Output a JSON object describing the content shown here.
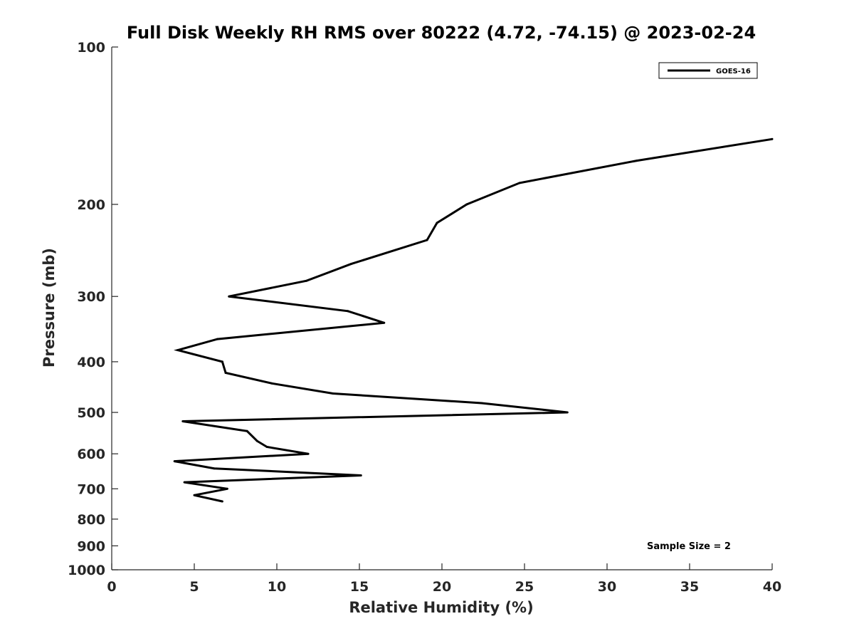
{
  "chart_data": {
    "type": "line",
    "title": "Full Disk Weekly RH RMS over 80222 (4.72, -74.15) @ 2023-02-24",
    "xlabel": "Relative Humidity (%)",
    "ylabel": "Pressure (mb)",
    "xlim": [
      0,
      40
    ],
    "ylim": [
      1000,
      100
    ],
    "yscale": "log",
    "grid": false,
    "legend_position": "top-right",
    "xticks": [
      0,
      5,
      10,
      15,
      20,
      25,
      30,
      35,
      40
    ],
    "yticks": [
      100,
      200,
      300,
      400,
      500,
      600,
      700,
      800,
      900,
      1000
    ],
    "annotation": "Sample Size = 2",
    "series": [
      {
        "name": "GOES-16",
        "color": "#000000",
        "points": [
          {
            "x": 40.0,
            "y": 150
          },
          {
            "x": 31.8,
            "y": 165
          },
          {
            "x": 24.7,
            "y": 182
          },
          {
            "x": 21.5,
            "y": 200
          },
          {
            "x": 19.7,
            "y": 217
          },
          {
            "x": 19.1,
            "y": 234
          },
          {
            "x": 14.5,
            "y": 260
          },
          {
            "x": 11.8,
            "y": 280
          },
          {
            "x": 7.1,
            "y": 300
          },
          {
            "x": 14.3,
            "y": 320
          },
          {
            "x": 16.5,
            "y": 337
          },
          {
            "x": 6.4,
            "y": 362
          },
          {
            "x": 4.0,
            "y": 380
          },
          {
            "x": 6.7,
            "y": 400
          },
          {
            "x": 6.9,
            "y": 420
          },
          {
            "x": 9.7,
            "y": 440
          },
          {
            "x": 13.4,
            "y": 460
          },
          {
            "x": 22.4,
            "y": 480
          },
          {
            "x": 27.6,
            "y": 500
          },
          {
            "x": 4.3,
            "y": 520
          },
          {
            "x": 8.2,
            "y": 543
          },
          {
            "x": 8.8,
            "y": 567
          },
          {
            "x": 9.4,
            "y": 582
          },
          {
            "x": 11.9,
            "y": 600
          },
          {
            "x": 3.8,
            "y": 620
          },
          {
            "x": 6.2,
            "y": 640
          },
          {
            "x": 15.1,
            "y": 660
          },
          {
            "x": 4.4,
            "y": 680
          },
          {
            "x": 7.0,
            "y": 700
          },
          {
            "x": 5.0,
            "y": 720
          },
          {
            "x": 6.7,
            "y": 740
          }
        ]
      }
    ]
  }
}
